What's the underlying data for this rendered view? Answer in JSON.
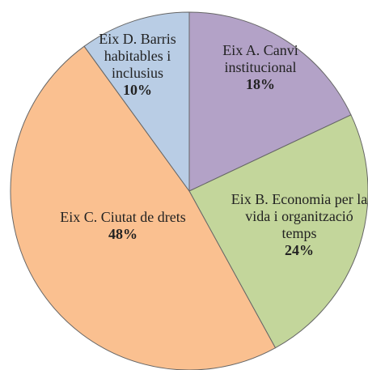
{
  "chart_data": {
    "type": "pie",
    "categories": [
      "Eix A. Canvi institucional",
      "Eix B. Economia per la vida i organització temps",
      "Eix C. Ciutat de drets",
      "Eix D. Barris habitables i inclusius"
    ],
    "values": [
      18,
      24,
      48,
      10
    ],
    "value_labels": [
      "18%",
      "24%",
      "48%",
      "10%"
    ],
    "colors": [
      "#b3a2c7",
      "#c3d69b",
      "#fac090",
      "#b9cde5"
    ]
  }
}
